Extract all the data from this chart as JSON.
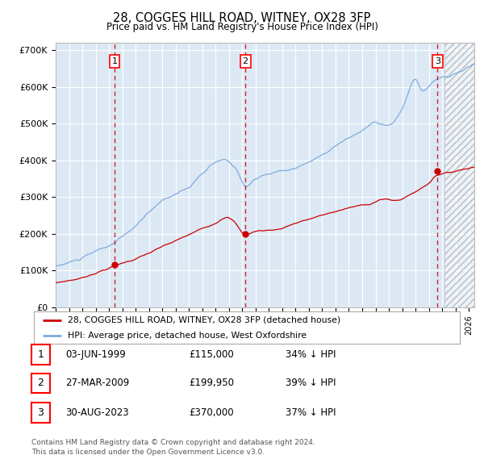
{
  "title": "28, COGGES HILL ROAD, WITNEY, OX28 3FP",
  "subtitle": "Price paid vs. HM Land Registry's House Price Index (HPI)",
  "ylim": [
    0,
    720000
  ],
  "ytick_labels": [
    "£0",
    "£100K",
    "£200K",
    "£300K",
    "£400K",
    "£500K",
    "£600K",
    "£700K"
  ],
  "hpi_color": "#7faadc",
  "property_color": "#cc0000",
  "vline_color": "#cc0000",
  "background_color": "#ffffff",
  "plot_bg_color": "#dce9f5",
  "grid_color": "#ffffff",
  "purchase_prices": [
    115000,
    199950,
    370000
  ],
  "purchase_labels": [
    "1",
    "2",
    "3"
  ],
  "legend_property": "28, COGGES HILL ROAD, WITNEY, OX28 3FP (detached house)",
  "legend_hpi": "HPI: Average price, detached house, West Oxfordshire",
  "table_rows": [
    [
      "1",
      "03-JUN-1999",
      "£115,000",
      "34% ↓ HPI"
    ],
    [
      "2",
      "27-MAR-2009",
      "£199,950",
      "39% ↓ HPI"
    ],
    [
      "3",
      "30-AUG-2023",
      "£370,000",
      "37% ↓ HPI"
    ]
  ],
  "footnote1": "Contains HM Land Registry data © Crown copyright and database right 2024.",
  "footnote2": "This data is licensed under the Open Government Licence v3.0.",
  "xstart_year": 1995,
  "xend_year": 2026
}
